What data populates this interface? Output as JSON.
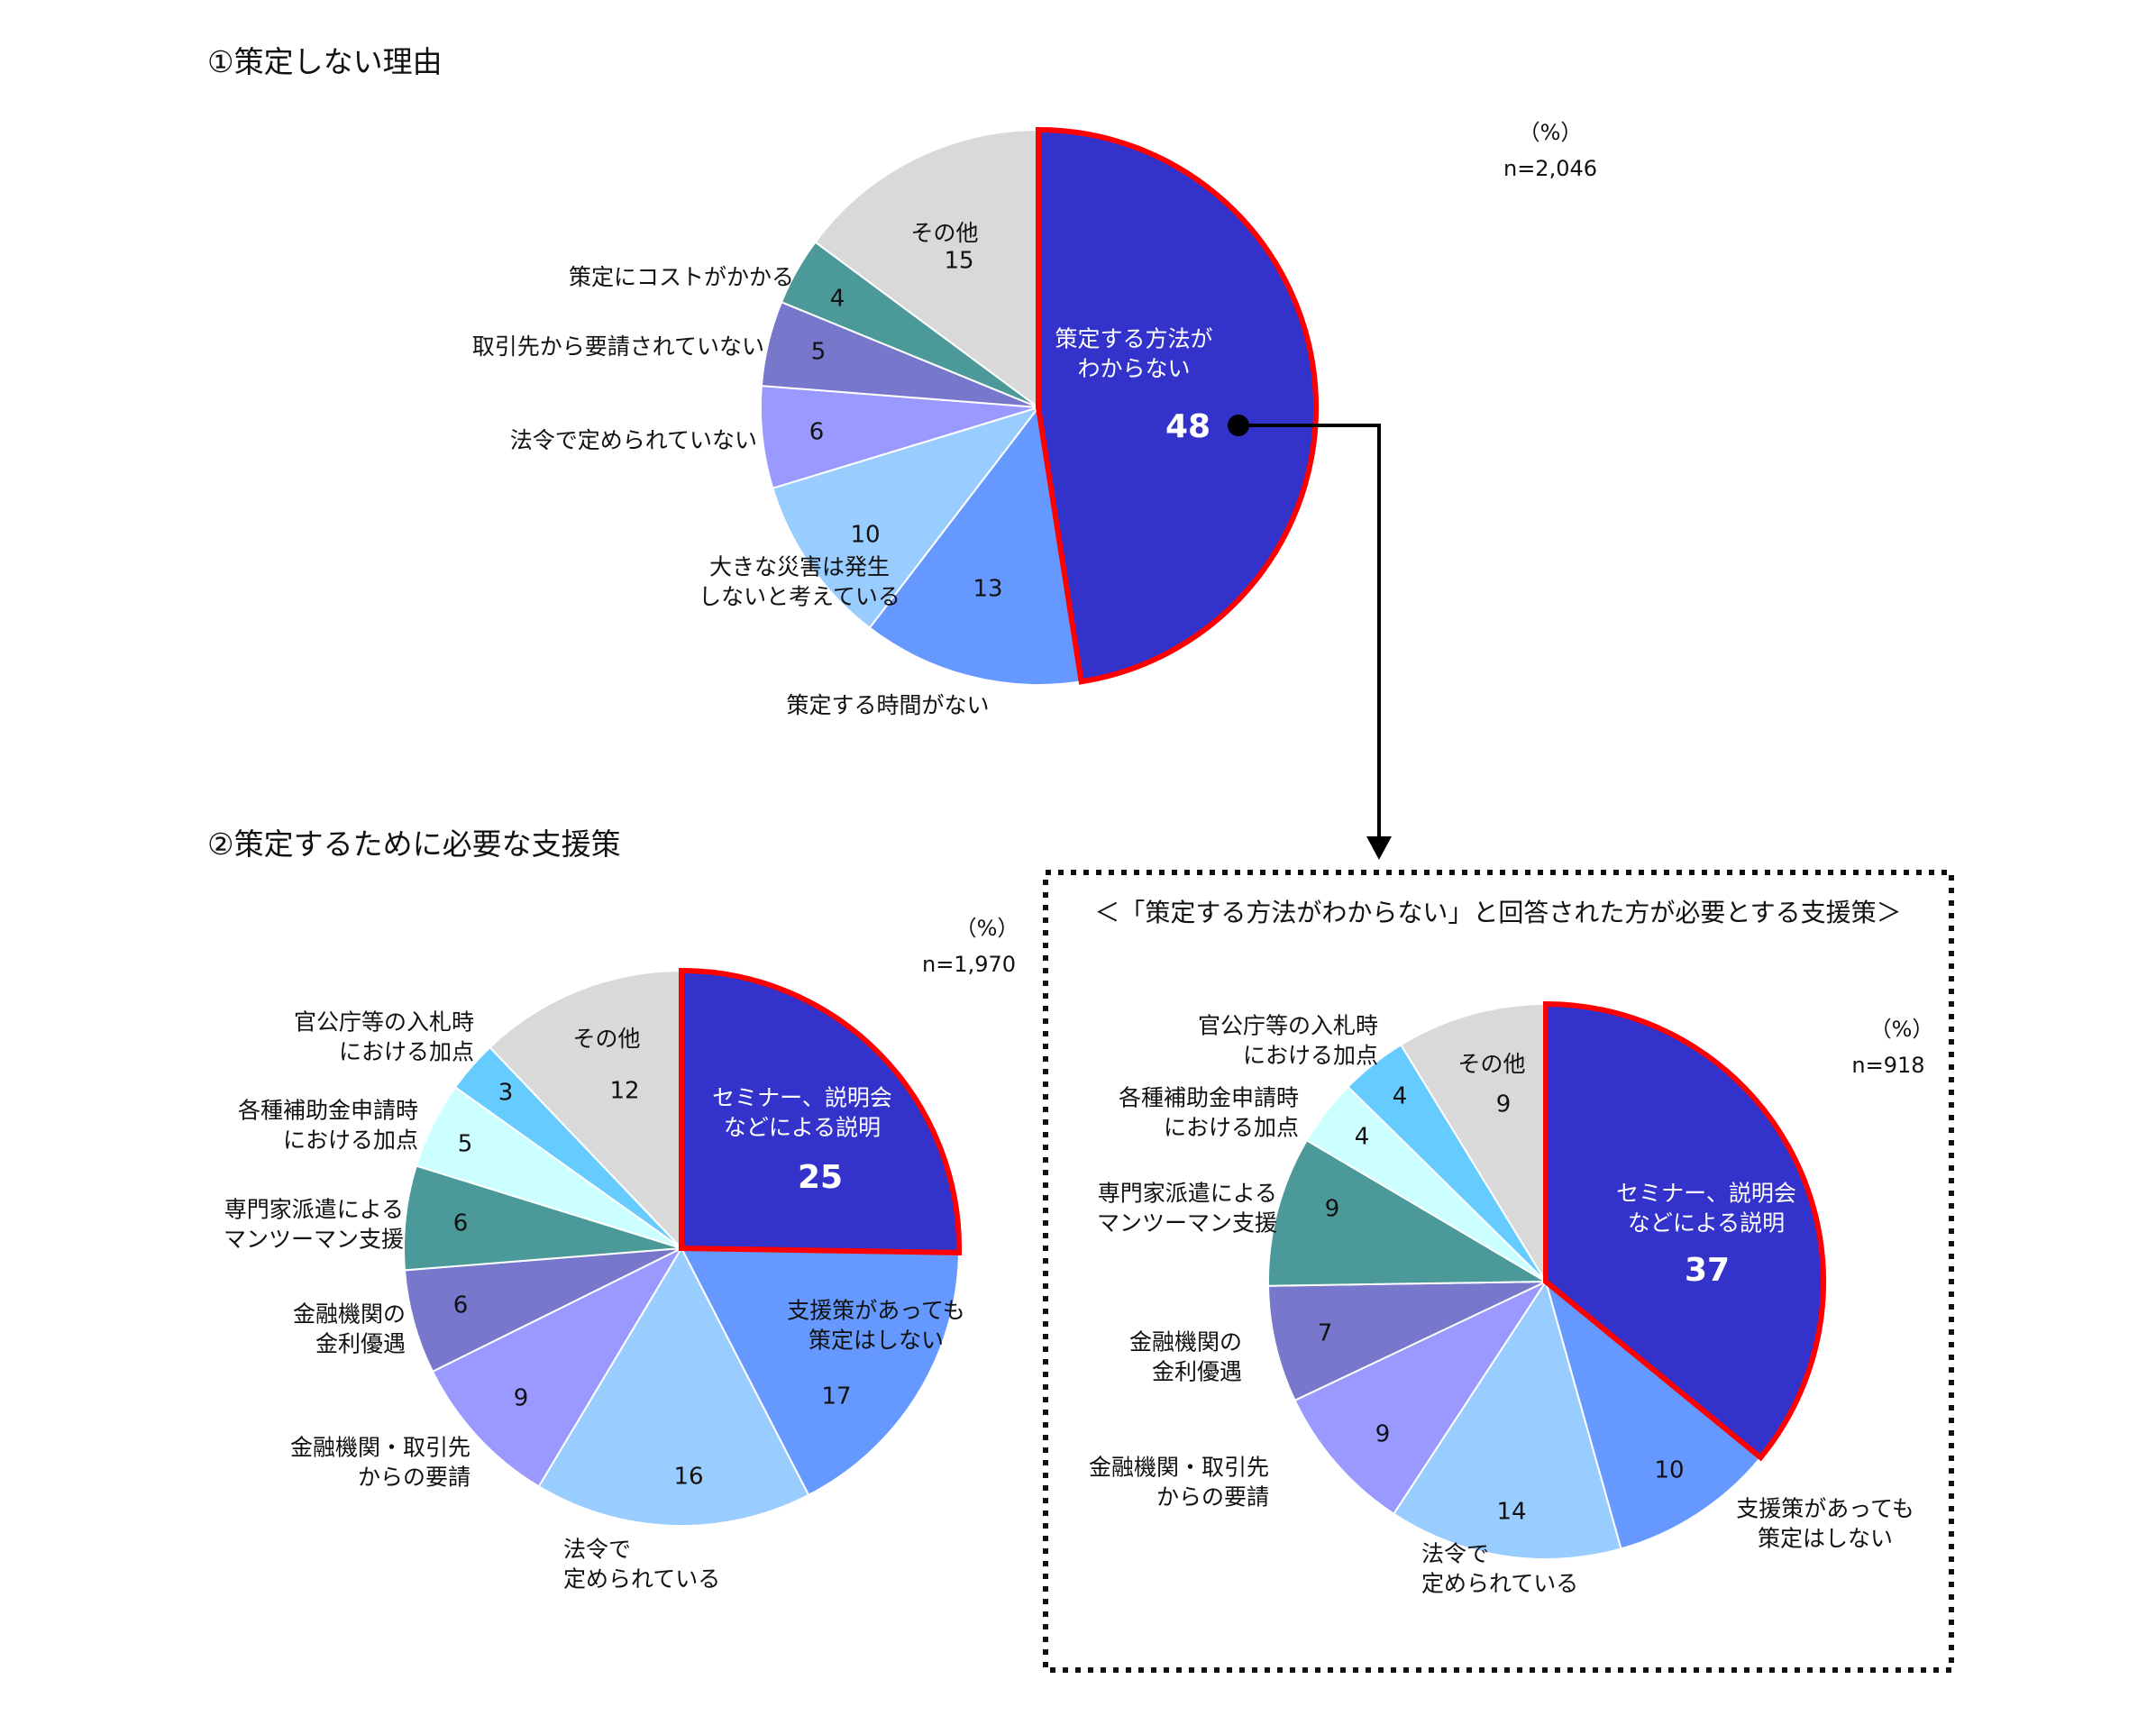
{
  "charts": [
    {
      "heading": "①策定しない理由",
      "unit": "（%）",
      "n": "n=2,046",
      "chart_data": {
        "type": "pie",
        "title": "①策定しない理由",
        "slices": [
          {
            "label": "策定する方法が\nわからない",
            "value": 48,
            "value_label": "48",
            "color": "#3333cc",
            "highlight": true
          },
          {
            "label": "策定する時間がない",
            "value": 13,
            "value_label": "13",
            "color": "#6699ff"
          },
          {
            "label": "大きな災害は発生\nしないと考えている",
            "value": 10,
            "value_label": "10",
            "color": "#99ccff"
          },
          {
            "label": "法令で定められていない",
            "value": 6,
            "value_label": "6",
            "color": "#9999ff"
          },
          {
            "label": "取引先から要請されていない",
            "value": 5,
            "value_label": "5",
            "color": "#7777cc"
          },
          {
            "label": "策定にコストがかかる",
            "value": 4,
            "value_label": "4",
            "color": "#4b9999"
          },
          {
            "label": "その他",
            "value": 15,
            "value_label": "15",
            "color": "#d9d9d9"
          }
        ]
      }
    },
    {
      "heading": "②策定するために必要な支援策",
      "unit": "（%）",
      "n": "n=1,970",
      "chart_data": {
        "type": "pie",
        "title": "②策定するために必要な支援策",
        "slices": [
          {
            "label": "セミナー、説明会\nなどによる説明",
            "value": 25,
            "value_label": "25",
            "color": "#3333cc",
            "highlight": true
          },
          {
            "label": "支援策があっても\n策定はしない",
            "value": 17,
            "value_label": "17",
            "color": "#6699ff"
          },
          {
            "label": "法令で\n定められている",
            "value": 16,
            "value_label": "16",
            "color": "#99ccff"
          },
          {
            "label": "金融機関・取引先\nからの要請",
            "value": 9,
            "value_label": "9",
            "color": "#9999ff"
          },
          {
            "label": "金融機関の\n金利優遇",
            "value": 6,
            "value_label": "6",
            "color": "#7777cc"
          },
          {
            "label": "専門家派遣による\nマンツーマン支援",
            "value": 6,
            "value_label": "6",
            "color": "#4b9999"
          },
          {
            "label": "各種補助金申請時\nにおける加点",
            "value": 5,
            "value_label": "5",
            "color": "#ccffff"
          },
          {
            "label": "官公庁等の入札時\nにおける加点",
            "value": 3,
            "value_label": "3",
            "color": "#66ccff"
          },
          {
            "label": "その他",
            "value": 12,
            "value_label": "12",
            "color": "#d9d9d9"
          }
        ]
      }
    },
    {
      "heading": "＜「策定する方法がわからない」と回答された方が必要とする支援策＞",
      "unit": "（%）",
      "n": "n=918",
      "chart_data": {
        "type": "pie",
        "title": "＜「策定する方法がわからない」と回答された方が必要とする支援策＞",
        "slices": [
          {
            "label": "セミナー、説明会\nなどによる説明",
            "value": 37,
            "value_label": "37",
            "color": "#3333cc",
            "highlight": true
          },
          {
            "label": "支援策があっても\n策定はしない",
            "value": 10,
            "value_label": "10",
            "color": "#6699ff"
          },
          {
            "label": "法令で\n定められている",
            "value": 14,
            "value_label": "14",
            "color": "#99ccff"
          },
          {
            "label": "金融機関・取引先\nからの要請",
            "value": 9,
            "value_label": "9",
            "color": "#9999ff"
          },
          {
            "label": "金融機関の\n金利優遇",
            "value": 7,
            "value_label": "7",
            "color": "#7777cc"
          },
          {
            "label": "専門家派遣による\nマンツーマン支援",
            "value": 9,
            "value_label": "9",
            "color": "#4b9999"
          },
          {
            "label": "各種補助金申請時\nにおける加点",
            "value": 4,
            "value_label": "4",
            "color": "#ccffff"
          },
          {
            "label": "官公庁等の入札時\nにおける加点",
            "value": 4,
            "value_label": "4",
            "color": "#66ccff"
          },
          {
            "label": "その他",
            "value": 9,
            "value_label": "9",
            "color": "#d9d9d9"
          }
        ]
      }
    }
  ],
  "colors": {
    "highlight_border": "#ff0000",
    "slice_border": "#ffffff",
    "connector": "#000000"
  }
}
